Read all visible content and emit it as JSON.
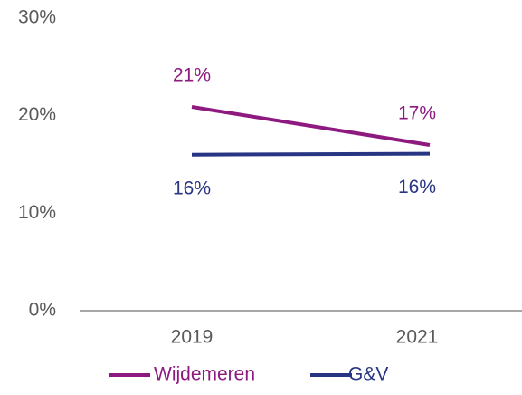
{
  "chart_data": {
    "type": "line",
    "categories": [
      "2019",
      "2021"
    ],
    "series": [
      {
        "name": "Wijdemeren",
        "color": "#8e1a80",
        "values": [
          20.9,
          17
        ],
        "value_labels": [
          "21%",
          "17%"
        ]
      },
      {
        "name": "G&V",
        "color": "#283583",
        "values": [
          16,
          16.1
        ],
        "value_labels": [
          "16%",
          "16%"
        ]
      }
    ],
    "ylim": [
      0,
      30
    ],
    "yticks": [
      {
        "value": 0,
        "label": "0%"
      },
      {
        "value": 10,
        "label": "10%"
      },
      {
        "value": 20,
        "label": "20%"
      },
      {
        "value": 30,
        "label": "30%"
      }
    ],
    "grid": false,
    "legend": "bottom"
  }
}
